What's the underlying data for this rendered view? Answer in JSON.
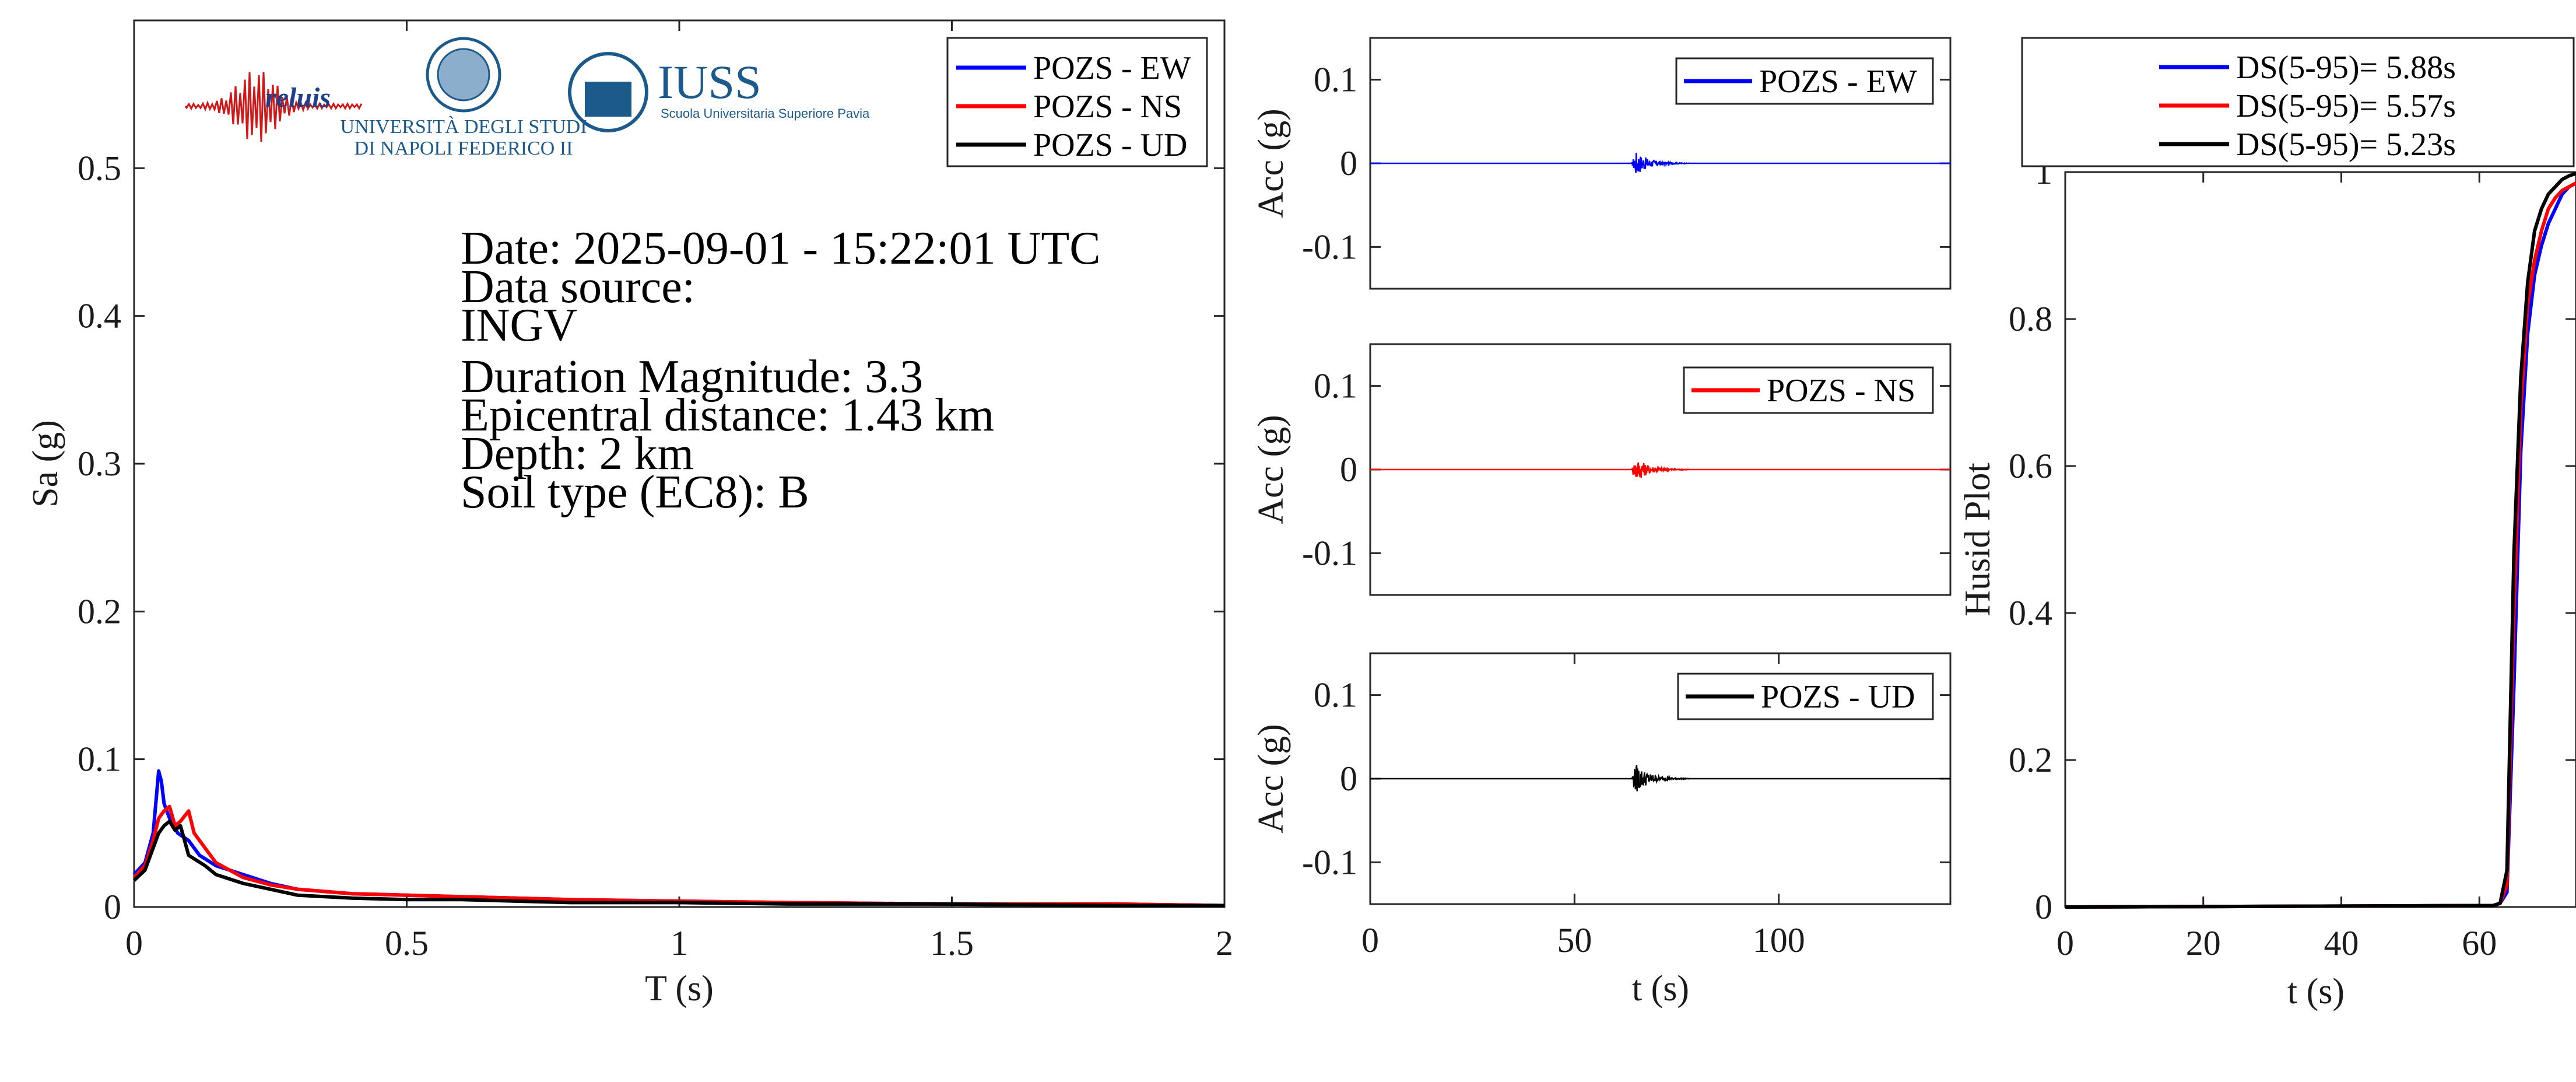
{
  "colors": {
    "ew": "#0000ff",
    "ns": "#ff0000",
    "ud": "#000000",
    "axis": "#262626",
    "logo_blue": "#1d5a8c"
  },
  "logos": {
    "reluis": "reluis",
    "unina_line1": "UNIVERSITÀ DEGLI STUDI",
    "unina_line2": "DI NAPOLI FEDERICO II",
    "iuss": "IUSS",
    "iuss_sub": "Scuola Universitaria Superiore Pavia"
  },
  "info": {
    "date": "Date: 2025-09-01 - 15:22:01 UTC",
    "source_label": "Data source:",
    "source": "INGV",
    "magnitude": "Duration Magnitude: 3.3",
    "distance": "Epicentral distance: 1.43 km",
    "depth": "Depth: 2 km",
    "soil": "Soil type (EC8): B"
  },
  "chart_data": [
    {
      "type": "line",
      "xlabel": "T (s)",
      "ylabel": "Sa (g)",
      "xlim": [
        0,
        2
      ],
      "ylim": [
        0,
        0.6
      ],
      "xticks": [
        "0",
        "0.5",
        "1",
        "1.5",
        "2"
      ],
      "yticks": [
        "0",
        "0.1",
        "0.2",
        "0.3",
        "0.4",
        "0.5"
      ],
      "legend": "top-right",
      "series": [
        {
          "name": "POZS - EW",
          "x": [
            0,
            0.02,
            0.035,
            0.045,
            0.05,
            0.055,
            0.065,
            0.08,
            0.1,
            0.12,
            0.15,
            0.2,
            0.25,
            0.3,
            0.4,
            0.5,
            0.6,
            0.7,
            0.8,
            1.0,
            1.2,
            1.5,
            1.8,
            2.0
          ],
          "values": [
            0.022,
            0.03,
            0.05,
            0.092,
            0.085,
            0.07,
            0.06,
            0.05,
            0.045,
            0.035,
            0.028,
            0.022,
            0.016,
            0.012,
            0.009,
            0.008,
            0.007,
            0.006,
            0.005,
            0.004,
            0.003,
            0.002,
            0.002,
            0.001
          ]
        },
        {
          "name": "POZS - NS",
          "x": [
            0,
            0.02,
            0.035,
            0.045,
            0.055,
            0.065,
            0.075,
            0.085,
            0.1,
            0.11,
            0.13,
            0.15,
            0.2,
            0.25,
            0.3,
            0.4,
            0.5,
            0.6,
            0.7,
            0.8,
            1.0,
            1.2,
            1.5,
            1.8,
            2.0
          ],
          "values": [
            0.02,
            0.028,
            0.045,
            0.06,
            0.065,
            0.068,
            0.055,
            0.058,
            0.065,
            0.05,
            0.04,
            0.03,
            0.02,
            0.015,
            0.012,
            0.009,
            0.008,
            0.007,
            0.006,
            0.005,
            0.004,
            0.003,
            0.002,
            0.002,
            0.001
          ]
        },
        {
          "name": "POZS - UD",
          "x": [
            0,
            0.02,
            0.035,
            0.045,
            0.055,
            0.065,
            0.075,
            0.085,
            0.1,
            0.13,
            0.15,
            0.2,
            0.25,
            0.3,
            0.4,
            0.5,
            0.6,
            0.7,
            0.8,
            1.0,
            1.2,
            1.5,
            1.8,
            2.0
          ],
          "values": [
            0.018,
            0.025,
            0.04,
            0.05,
            0.055,
            0.058,
            0.052,
            0.055,
            0.035,
            0.028,
            0.022,
            0.016,
            0.012,
            0.008,
            0.006,
            0.005,
            0.005,
            0.004,
            0.003,
            0.003,
            0.002,
            0.002,
            0.001,
            0.001
          ]
        }
      ]
    },
    {
      "type": "line",
      "ylabel": "Acc (g)",
      "xlim": [
        0,
        142
      ],
      "ylim": [
        -0.15,
        0.15
      ],
      "yticks": [
        "0.1",
        "0",
        "-0.1"
      ],
      "legend": "top-right",
      "series": [
        {
          "name": "POZS - EW",
          "peak_time": 65,
          "peak_amplitude": 0.015,
          "decay_end": 78
        }
      ]
    },
    {
      "type": "line",
      "ylabel": "Acc (g)",
      "xlim": [
        0,
        142
      ],
      "ylim": [
        -0.15,
        0.15
      ],
      "yticks": [
        "0.1",
        "0",
        "-0.1"
      ],
      "legend": "top-right",
      "series": [
        {
          "name": "POZS - NS",
          "peak_time": 65,
          "peak_amplitude": 0.015,
          "decay_end": 78
        }
      ]
    },
    {
      "type": "line",
      "xlabel": "t (s)",
      "ylabel": "Acc (g)",
      "xlim": [
        0,
        142
      ],
      "ylim": [
        -0.15,
        0.15
      ],
      "xticks": [
        "0",
        "50",
        "100"
      ],
      "yticks": [
        "0.1",
        "0",
        "-0.1"
      ],
      "legend": "top-right",
      "series": [
        {
          "name": "POZS - UD",
          "peak_time": 65,
          "peak_amplitude": 0.018,
          "decay_end": 78
        }
      ]
    },
    {
      "type": "line",
      "xlabel": "t (s)",
      "ylabel": "Husid Plot",
      "xlim": [
        0,
        74
      ],
      "ylim": [
        0,
        1
      ],
      "xticks": [
        "0",
        "20",
        "40",
        "60"
      ],
      "yticks": [
        "0",
        "0.2",
        "0.4",
        "0.6",
        "0.8",
        "1"
      ],
      "legend": "top",
      "series": [
        {
          "name": "DS(5-95)= 5.88s",
          "x": [
            0,
            62,
            63,
            64,
            65,
            66,
            67,
            68,
            69,
            70,
            71,
            72,
            73,
            74
          ],
          "values": [
            0,
            0.002,
            0.005,
            0.02,
            0.3,
            0.62,
            0.78,
            0.86,
            0.9,
            0.93,
            0.95,
            0.97,
            0.98,
            0.985
          ]
        },
        {
          "name": "DS(5-95)= 5.57s",
          "x": [
            0,
            62,
            63,
            64,
            65,
            66,
            67,
            68,
            69,
            70,
            71,
            72,
            73,
            74
          ],
          "values": [
            0,
            0.002,
            0.005,
            0.03,
            0.4,
            0.68,
            0.82,
            0.88,
            0.92,
            0.95,
            0.965,
            0.975,
            0.98,
            0.985
          ]
        },
        {
          "name": "DS(5-95)= 5.23s",
          "x": [
            0,
            62,
            63,
            64,
            65,
            66,
            67,
            68,
            69,
            70,
            71,
            72,
            73,
            74
          ],
          "values": [
            0,
            0.002,
            0.005,
            0.05,
            0.48,
            0.72,
            0.85,
            0.92,
            0.95,
            0.97,
            0.98,
            0.99,
            0.995,
            0.998
          ]
        }
      ]
    }
  ]
}
